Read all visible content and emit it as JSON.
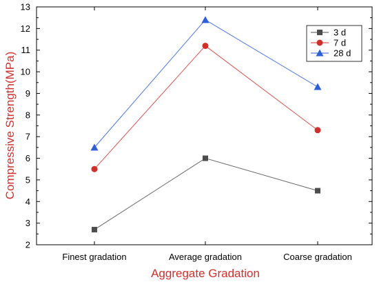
{
  "chart_data": {
    "type": "line",
    "title": "",
    "xlabel": "Aggregate Gradation",
    "ylabel": "Compressive Strength(MPa)",
    "categories": [
      "Finest gradation",
      "Average gradation",
      "Coarse gradation"
    ],
    "ylim": [
      2,
      13
    ],
    "yticks": [
      2,
      3,
      4,
      5,
      6,
      7,
      8,
      9,
      10,
      11,
      12,
      13
    ],
    "grid": false,
    "legend_position": "top-right",
    "series": [
      {
        "name": "3 d",
        "values": [
          2.7,
          6.0,
          4.5
        ],
        "color": "#4d4d4d",
        "marker": "square"
      },
      {
        "name": "7 d",
        "values": [
          5.5,
          11.2,
          7.3
        ],
        "color": "#d0302b",
        "marker": "circle"
      },
      {
        "name": "28 d",
        "values": [
          6.5,
          12.4,
          9.3
        ],
        "color": "#2e5fd8",
        "marker": "triangle"
      }
    ]
  }
}
